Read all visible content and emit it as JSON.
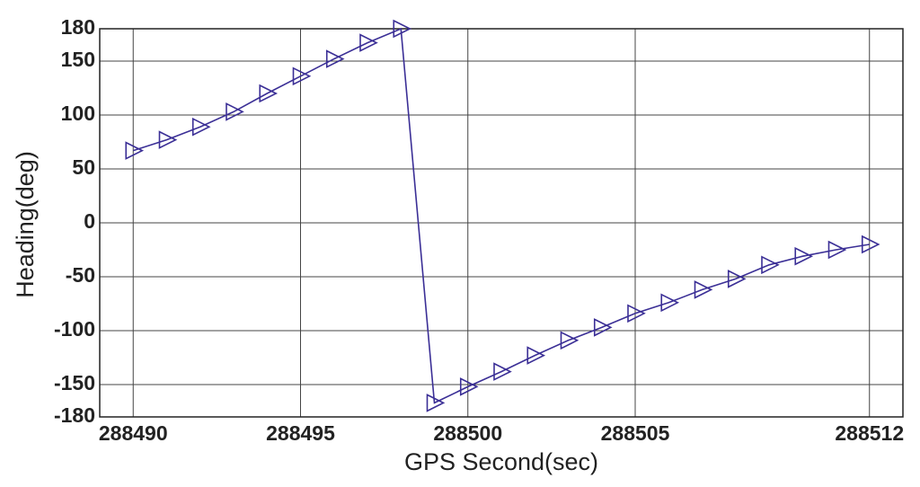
{
  "chart_data": {
    "type": "line",
    "x_label": "GPS Second(sec)",
    "y_label": "Heading(deg)",
    "x": [
      288490,
      288491,
      288492,
      288493,
      288494,
      288495,
      288496,
      288497,
      288498,
      288499,
      288500,
      288501,
      288502,
      288503,
      288504,
      288505,
      288506,
      288507,
      288508,
      288509,
      288510,
      288511,
      288512
    ],
    "series": [
      {
        "color": "#3b2f96",
        "marker": "triangle-right",
        "values": [
          67,
          77,
          89,
          103,
          120,
          136,
          152,
          167,
          180,
          -167,
          -152,
          -138,
          -123,
          -109,
          -97,
          -84,
          -74,
          -62,
          -52,
          -39,
          -31,
          -25,
          -20
        ]
      }
    ],
    "xlim": [
      288489,
      288513
    ],
    "xticks": [
      288490,
      288495,
      288500,
      288505,
      288512
    ],
    "ylim": [
      -180,
      180
    ],
    "yticks": [
      -180,
      -150,
      -100,
      -50,
      0,
      50,
      100,
      150,
      180
    ],
    "grid": true
  }
}
